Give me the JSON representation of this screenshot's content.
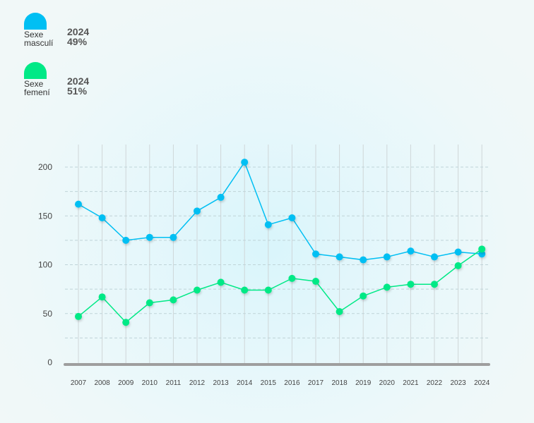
{
  "legend": [
    {
      "label_line1": "Sexe",
      "label_line2": "masculí",
      "year": "2024",
      "percent": "49%",
      "color": "#00bff3"
    },
    {
      "label_line1": "Sexe",
      "label_line2": "femení",
      "year": "2024",
      "percent": "51%",
      "color": "#00e986"
    }
  ],
  "chart_data": {
    "type": "line",
    "title": "",
    "xlabel": "",
    "ylabel": "",
    "x": [
      "2007",
      "2008",
      "2009",
      "2010",
      "2011",
      "2012",
      "2013",
      "2014",
      "2015",
      "2016",
      "2017",
      "2018",
      "2019",
      "2020",
      "2021",
      "2022",
      "2023",
      "2024"
    ],
    "ylim": [
      0,
      200
    ],
    "yticks": [
      0,
      50,
      100,
      150,
      200
    ],
    "grid": true,
    "legend_position": "top-left",
    "series": [
      {
        "name": "Sexe masculí",
        "color": "#00bff3",
        "values": [
          162,
          148,
          125,
          128,
          128,
          155,
          169,
          205,
          141,
          148,
          111,
          108,
          105,
          108,
          114,
          108,
          113,
          111
        ]
      },
      {
        "name": "Sexe femení",
        "color": "#00e986",
        "values": [
          47,
          67,
          41,
          61,
          64,
          74,
          82,
          74,
          74,
          86,
          83,
          52,
          68,
          77,
          80,
          80,
          99,
          116
        ]
      }
    ]
  }
}
